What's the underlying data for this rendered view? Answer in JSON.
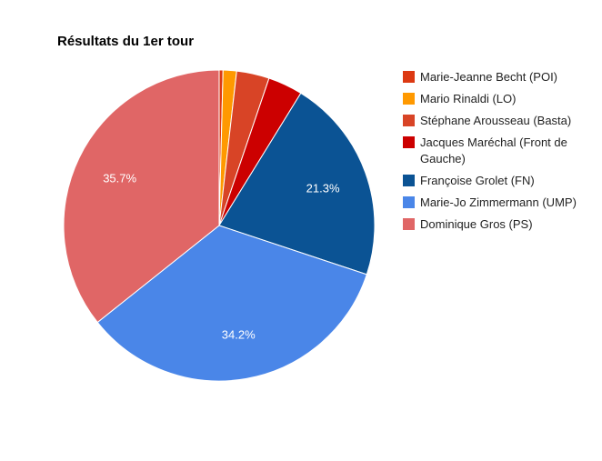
{
  "chart_data": {
    "type": "pie",
    "title": "Résultats du 1er tour",
    "legend_position": "right",
    "slices": [
      {
        "name": "Marie-Jeanne Becht (POI)",
        "value": 0.4,
        "color": "#dc3912"
      },
      {
        "name": "Mario Rinaldi (LO)",
        "value": 1.4,
        "color": "#ff9900"
      },
      {
        "name": "Stéphane Arousseau (Basta)",
        "value": 3.4,
        "color": "#d84426"
      },
      {
        "name": "Jacques Maréchal (Front de Gauche)",
        "value": 3.6,
        "color": "#cc0000"
      },
      {
        "name": "Françoise Grolet (FN)",
        "value": 21.3,
        "color": "#0b5394",
        "label": "21.3%"
      },
      {
        "name": "Marie-Jo Zimmermann (UMP)",
        "value": 34.2,
        "color": "#4a86e8",
        "label": "34.2%"
      },
      {
        "name": "Dominique Gros (PS)",
        "value": 35.7,
        "color": "#e06666",
        "label": "35.7%"
      }
    ]
  }
}
